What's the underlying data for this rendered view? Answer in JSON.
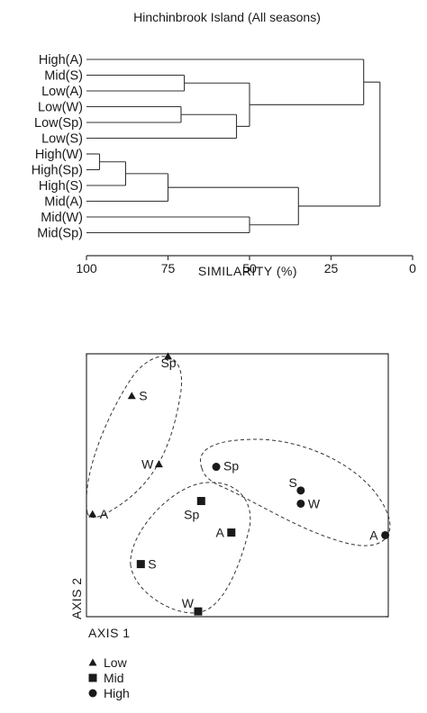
{
  "dendrogram": {
    "title": "Hinchinbrook Island (All seasons)",
    "leaves": [
      "High(A)",
      "Mid(S)",
      "Low(A)",
      "Low(W)",
      "Low(Sp)",
      "Low(S)",
      "High(W)",
      "High(Sp)",
      "High(S)",
      "Mid(A)",
      "Mid(W)",
      "Mid(Sp)"
    ],
    "ticks": [
      "100",
      "75",
      "50",
      "25",
      "0"
    ],
    "tick_values": [
      100,
      75,
      50,
      25,
      0
    ],
    "xlabel": "SIMILARITY (%)",
    "merges": [
      {
        "a": "High(W)",
        "b": "High(Sp)",
        "similarity": 96
      },
      {
        "a": "c1",
        "b": "High(S)",
        "similarity": 88
      },
      {
        "a": "c2",
        "b": "Mid(A)",
        "similarity": 75
      },
      {
        "a": "Mid(W)",
        "b": "Mid(Sp)",
        "similarity": 50
      },
      {
        "a": "c3",
        "b": "c4",
        "similarity": 35
      },
      {
        "a": "Mid(S)",
        "b": "Low(A)",
        "similarity": 70
      },
      {
        "a": "Low(W)",
        "b": "Low(Sp)",
        "similarity": 71
      },
      {
        "a": "c7",
        "b": "Low(S)",
        "similarity": 54
      },
      {
        "a": "c6",
        "b": "c8",
        "similarity": 50
      },
      {
        "a": "High(A)",
        "b": "c9",
        "similarity": 15
      },
      {
        "a": "c10",
        "b": "c5",
        "similarity": 10
      }
    ]
  },
  "ordination": {
    "xlabel": "AXIS 1",
    "ylabel": "AXIS 2",
    "points": [
      {
        "label": "Sp",
        "group": "Low",
        "x": 0.27,
        "y": 0.99
      },
      {
        "label": "S",
        "group": "Low",
        "x": 0.15,
        "y": 0.84
      },
      {
        "label": "W",
        "group": "Low",
        "x": 0.24,
        "y": 0.58
      },
      {
        "label": "A",
        "group": "Low",
        "x": 0.02,
        "y": 0.39
      },
      {
        "label": "Sp",
        "group": "Mid",
        "x": 0.38,
        "y": 0.44
      },
      {
        "label": "A",
        "group": "Mid",
        "x": 0.48,
        "y": 0.32
      },
      {
        "label": "S",
        "group": "Mid",
        "x": 0.18,
        "y": 0.2
      },
      {
        "label": "W",
        "group": "Mid",
        "x": 0.37,
        "y": 0.02
      },
      {
        "label": "Sp",
        "group": "High",
        "x": 0.43,
        "y": 0.57
      },
      {
        "label": "S",
        "group": "High",
        "x": 0.71,
        "y": 0.48
      },
      {
        "label": "W",
        "group": "High",
        "x": 0.71,
        "y": 0.43
      },
      {
        "label": "A",
        "group": "High",
        "x": 0.99,
        "y": 0.31
      }
    ],
    "hulls": [
      "Low",
      "Mid",
      "High"
    ]
  },
  "legend": [
    {
      "group": "Low",
      "symbol": "triangle",
      "label": "Low"
    },
    {
      "group": "Mid",
      "symbol": "square",
      "label": "Mid"
    },
    {
      "group": "High",
      "symbol": "circle",
      "label": "High"
    }
  ]
}
